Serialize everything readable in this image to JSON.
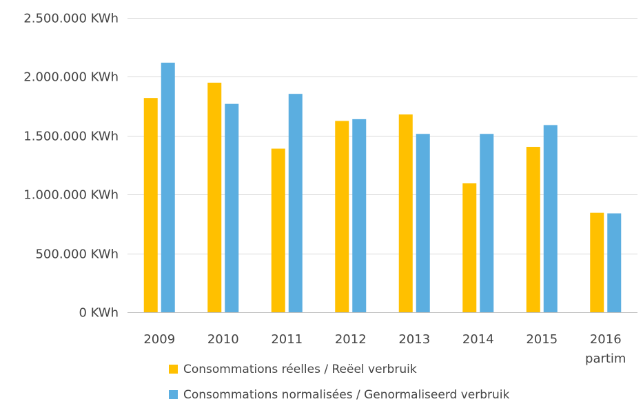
{
  "chart_data": {
    "type": "bar",
    "title": "",
    "xlabel": "",
    "ylabel": "",
    "unit": "KWh",
    "ylim": [
      0,
      2500000
    ],
    "yticks": [
      0,
      500000,
      1000000,
      1500000,
      2000000,
      2500000
    ],
    "ytick_labels": [
      "0 KWh",
      "500.000 KWh",
      "1.000.000 KWh",
      "1.500.000 KWh",
      "2.000.000 KWh",
      "2.500.000 KWh"
    ],
    "grid": true,
    "legend_position": "bottom",
    "categories": [
      "2009",
      "2010",
      "2011",
      "2012",
      "2013",
      "2014",
      "2015",
      "2016 partim"
    ],
    "category_labels": [
      [
        "2009"
      ],
      [
        "2010"
      ],
      [
        "2011"
      ],
      [
        "2012"
      ],
      [
        "2013"
      ],
      [
        "2014"
      ],
      [
        "2015"
      ],
      [
        "2016",
        "partim"
      ]
    ],
    "series": [
      {
        "name": "Consommations réelles / Reëel verbruik",
        "color": "#FFC000",
        "values": [
          1820000,
          1950000,
          1390000,
          1625000,
          1680000,
          1095000,
          1405000,
          845000
        ]
      },
      {
        "name": "Consommations normalisées / Genormaliseerd verbruik",
        "color": "#5BAEE0",
        "values": [
          2120000,
          1770000,
          1855000,
          1640000,
          1515000,
          1515000,
          1590000,
          840000
        ]
      }
    ],
    "gridline_color": "#d9d9d9",
    "axis_color": "#bfbfbf"
  }
}
